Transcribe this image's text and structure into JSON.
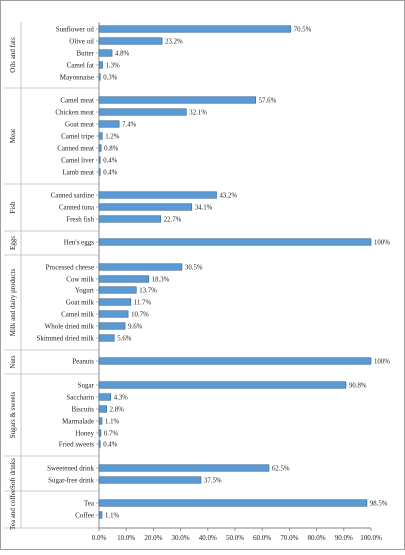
{
  "chart_data": {
    "type": "bar",
    "orientation": "horizontal",
    "xlim": [
      0,
      100
    ],
    "x_tick_labels": [
      "0.0%",
      "10.0%",
      "20.0%",
      "30.0%",
      "40.0%",
      "50.0%",
      "60.0%",
      "70.0%",
      "80.0%",
      "90.0%",
      "100.0%"
    ],
    "grid": false,
    "legend": "none",
    "bar_color": "#5b9bd5",
    "bar_edge_color": "#2e5f8a",
    "groups": [
      {
        "label": "Oils and fats",
        "items": [
          {
            "name": "Sunflower oil",
            "value": 70.5,
            "label": "70.5%"
          },
          {
            "name": "Olive oil",
            "value": 23.2,
            "label": "23.2%"
          },
          {
            "name": "Butter",
            "value": 4.8,
            "label": "4.8%"
          },
          {
            "name": "Camel fat",
            "value": 1.3,
            "label": "1.3%"
          },
          {
            "name": "Mayonnaise",
            "value": 0.3,
            "label": "0.3%"
          }
        ]
      },
      {
        "label": "Meat",
        "items": [
          {
            "name": "Camel meat",
            "value": 57.6,
            "label": "57.6%"
          },
          {
            "name": "Chicken meat",
            "value": 32.1,
            "label": "32.1%"
          },
          {
            "name": "Goat meat",
            "value": 7.4,
            "label": "7.4%"
          },
          {
            "name": "Camel tripe",
            "value": 1.2,
            "label": "1.2%"
          },
          {
            "name": "Canned meat",
            "value": 0.8,
            "label": "0.8%"
          },
          {
            "name": "Camel liver",
            "value": 0.4,
            "label": "0.4%"
          },
          {
            "name": "Lamb meat",
            "value": 0.4,
            "label": "0.4%"
          }
        ]
      },
      {
        "label": "Fish",
        "items": [
          {
            "name": "Canned sardine",
            "value": 43.2,
            "label": "43.2%"
          },
          {
            "name": "Canned tuna",
            "value": 34.1,
            "label": "34.1%"
          },
          {
            "name": "Fresh fish",
            "value": 22.7,
            "label": "22.7%"
          }
        ]
      },
      {
        "label": "Eggs",
        "items": [
          {
            "name": "Hen's eggs",
            "value": 100,
            "label": "100%"
          }
        ]
      },
      {
        "label": "Milk and dairy products",
        "items": [
          {
            "name": "Processed cheese",
            "value": 30.5,
            "label": "30.5%"
          },
          {
            "name": "Cow milk",
            "value": 18.3,
            "label": "18.3%"
          },
          {
            "name": "Yogurt",
            "value": 13.7,
            "label": "13.7%"
          },
          {
            "name": "Goat milk",
            "value": 11.7,
            "label": "11.7%"
          },
          {
            "name": "Camel milk",
            "value": 10.7,
            "label": "10.7%"
          },
          {
            "name": "Whole dried milk",
            "value": 9.6,
            "label": "9.6%"
          },
          {
            "name": "Skimmed dried milk",
            "value": 5.6,
            "label": "5.6%"
          }
        ]
      },
      {
        "label": "Nuts",
        "items": [
          {
            "name": "Peanuts",
            "value": 100,
            "label": "100%"
          }
        ]
      },
      {
        "label": "Sugars & sweets",
        "items": [
          {
            "name": "Sugar",
            "value": 90.8,
            "label": "90.8%"
          },
          {
            "name": "Saccharin",
            "value": 4.3,
            "label": "4.3%"
          },
          {
            "name": "Biscuits",
            "value": 2.8,
            "label": "2.8%"
          },
          {
            "name": "Marmalade",
            "value": 1.1,
            "label": "1.1%"
          },
          {
            "name": "Honey",
            "value": 0.7,
            "label": "0.7%"
          },
          {
            "name": "Fried sweets",
            "value": 0.4,
            "label": "0.4%"
          }
        ]
      },
      {
        "label": "Soft drinks",
        "items": [
          {
            "name": "Sweetened drink",
            "value": 62.5,
            "label": "62.5%"
          },
          {
            "name": "Sugar-free drink",
            "value": 37.5,
            "label": "37.5%"
          }
        ]
      },
      {
        "label": "Tea and coffee",
        "items": [
          {
            "name": "Tea",
            "value": 98.5,
            "label": "98.5%"
          },
          {
            "name": "Coffee",
            "value": 1.1,
            "label": "1.1%"
          }
        ]
      }
    ]
  }
}
